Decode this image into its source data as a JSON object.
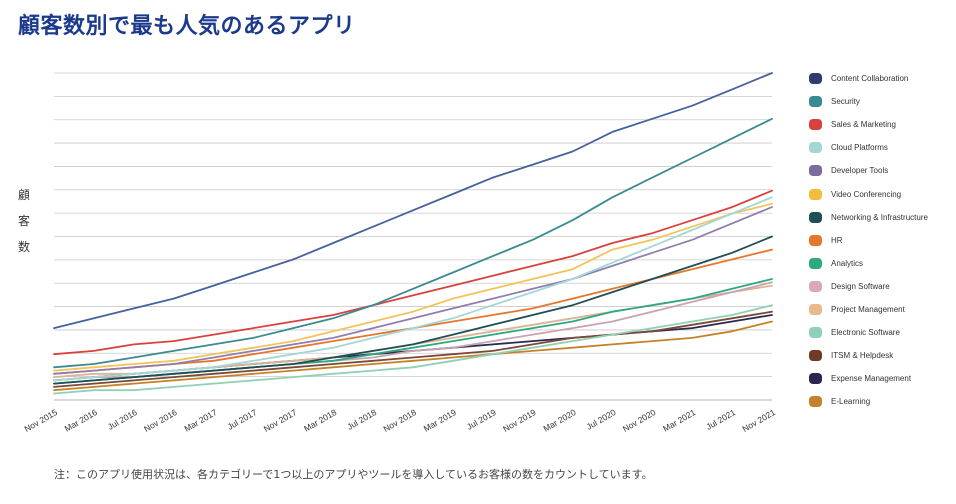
{
  "title": "顧客数別で最も人気のあるアプリ",
  "footnote": "注：このアプリ使用状況は、各カテゴリーで1つ以上のアプリやツールを導入しているお客様の数をカウントしています。",
  "chart_data": {
    "type": "line",
    "title": "顧客数別で最も人気のあるアプリ",
    "ylabel": "顧客数",
    "ylabel_chars": [
      "顧",
      "客",
      "数"
    ],
    "xlabel": "",
    "y_tick_labels_shown": false,
    "ylim": [
      0,
      100
    ],
    "grid": true,
    "legend_position": "right",
    "x_tick_labels": [
      "Nov 2015",
      "Mar 2016",
      "Jul 2016",
      "Nov 2016",
      "Mar 2017",
      "Jul 2017",
      "Nov 2017",
      "Mar 2018",
      "Jul 2018",
      "Nov 2018",
      "Mar 2019",
      "Jul 2019",
      "Nov 2019",
      "Mar 2020",
      "Jul 2020",
      "Nov 2020",
      "Mar 2021",
      "Jul 2021",
      "Nov 2021"
    ],
    "series": [
      {
        "name": "Content Collaboration",
        "color": "#2e3d6b",
        "line_color": "#45619e",
        "values": [
          22,
          25,
          28,
          31,
          35,
          39,
          43,
          48,
          53,
          58,
          63,
          68,
          72,
          76,
          82,
          86,
          90,
          95,
          100
        ]
      },
      {
        "name": "Security",
        "color": "#3a8a91",
        "line_color": "#3a8a91",
        "values": [
          10,
          11,
          13,
          15,
          17,
          19,
          22,
          25,
          29,
          34,
          39,
          44,
          49,
          55,
          62,
          68,
          74,
          80,
          86
        ]
      },
      {
        "name": "Sales & Marketing",
        "color": "#d9413c",
        "line_color": "#d9413c",
        "values": [
          14,
          15,
          17,
          18,
          20,
          22,
          24,
          26,
          29,
          32,
          35,
          38,
          41,
          44,
          48,
          51,
          55,
          59,
          64
        ]
      },
      {
        "name": "Cloud Platforms",
        "color": "#a5d6d6",
        "line_color": "#a5d6d6",
        "values": [
          6,
          7,
          8,
          9,
          10,
          12,
          14,
          16,
          19,
          22,
          25,
          29,
          33,
          37,
          42,
          47,
          52,
          57,
          62
        ]
      },
      {
        "name": "Developer Tools",
        "color": "#7c6b9e",
        "line_color": "#8f7fae",
        "values": [
          8,
          9,
          10,
          11,
          13,
          15,
          17,
          19,
          22,
          25,
          28,
          31,
          34,
          37,
          41,
          45,
          49,
          54,
          59
        ]
      },
      {
        "name": "Video Conferencing",
        "color": "#f2bd3c",
        "line_color": "#f2c45a",
        "values": [
          9,
          10,
          11,
          12,
          14,
          16,
          18,
          21,
          24,
          27,
          31,
          34,
          37,
          40,
          46,
          49,
          53,
          57,
          60
        ]
      },
      {
        "name": "Networking & Infrastructure",
        "color": "#1f4e55",
        "line_color": "#1f4e55",
        "values": [
          5,
          6,
          7,
          8,
          9,
          10,
          11,
          13,
          15,
          17,
          20,
          23,
          26,
          29,
          33,
          37,
          41,
          45,
          50
        ]
      },
      {
        "name": "HR",
        "color": "#e6762c",
        "line_color": "#e6762c",
        "values": [
          8,
          9,
          10,
          11,
          12,
          14,
          16,
          18,
          20,
          22,
          24,
          26,
          28,
          31,
          34,
          37,
          40,
          43,
          46
        ]
      },
      {
        "name": "Analytics",
        "color": "#2ea87e",
        "line_color": "#2ea87e",
        "values": [
          5,
          6,
          7,
          8,
          9,
          10,
          11,
          12,
          14,
          16,
          18,
          20,
          22,
          24,
          27,
          29,
          31,
          34,
          37
        ]
      },
      {
        "name": "Design Software",
        "color": "#d9a9b6",
        "line_color": "#c9a3b0",
        "values": [
          6,
          7,
          7,
          8,
          9,
          10,
          11,
          12,
          13,
          15,
          16,
          18,
          20,
          22,
          24,
          27,
          30,
          33,
          36
        ]
      },
      {
        "name": "Project Management",
        "color": "#e8b98a",
        "line_color": "#d9b593",
        "values": [
          7,
          8,
          8,
          9,
          10,
          11,
          12,
          13,
          15,
          17,
          19,
          21,
          23,
          25,
          27,
          29,
          31,
          33,
          35
        ]
      },
      {
        "name": "Electronic Software",
        "color": "#8fd1b5",
        "line_color": "#8fd1b5",
        "values": [
          2,
          3,
          3,
          4,
          5,
          6,
          7,
          8,
          9,
          10,
          12,
          14,
          16,
          18,
          20,
          22,
          24,
          26,
          29
        ]
      },
      {
        "name": "ITSM & Helpdesk",
        "color": "#6e3b26",
        "line_color": "#7a4a34",
        "values": [
          4,
          5,
          6,
          7,
          8,
          9,
          10,
          11,
          12,
          13,
          14,
          15,
          17,
          19,
          20,
          21,
          23,
          25,
          27
        ]
      },
      {
        "name": "Expense Management",
        "color": "#2a2850",
        "line_color": "#2a2850",
        "values": [
          6,
          7,
          8,
          9,
          10,
          11,
          12,
          13,
          14,
          15,
          16,
          17,
          18,
          19,
          20,
          21,
          22,
          24,
          26
        ]
      },
      {
        "name": "E-Learning",
        "color": "#c4822a",
        "line_color": "#c4822a",
        "values": [
          3,
          4,
          5,
          6,
          7,
          8,
          9,
          10,
          11,
          12,
          13,
          14,
          15,
          16,
          17,
          18,
          19,
          21,
          24
        ]
      }
    ]
  }
}
